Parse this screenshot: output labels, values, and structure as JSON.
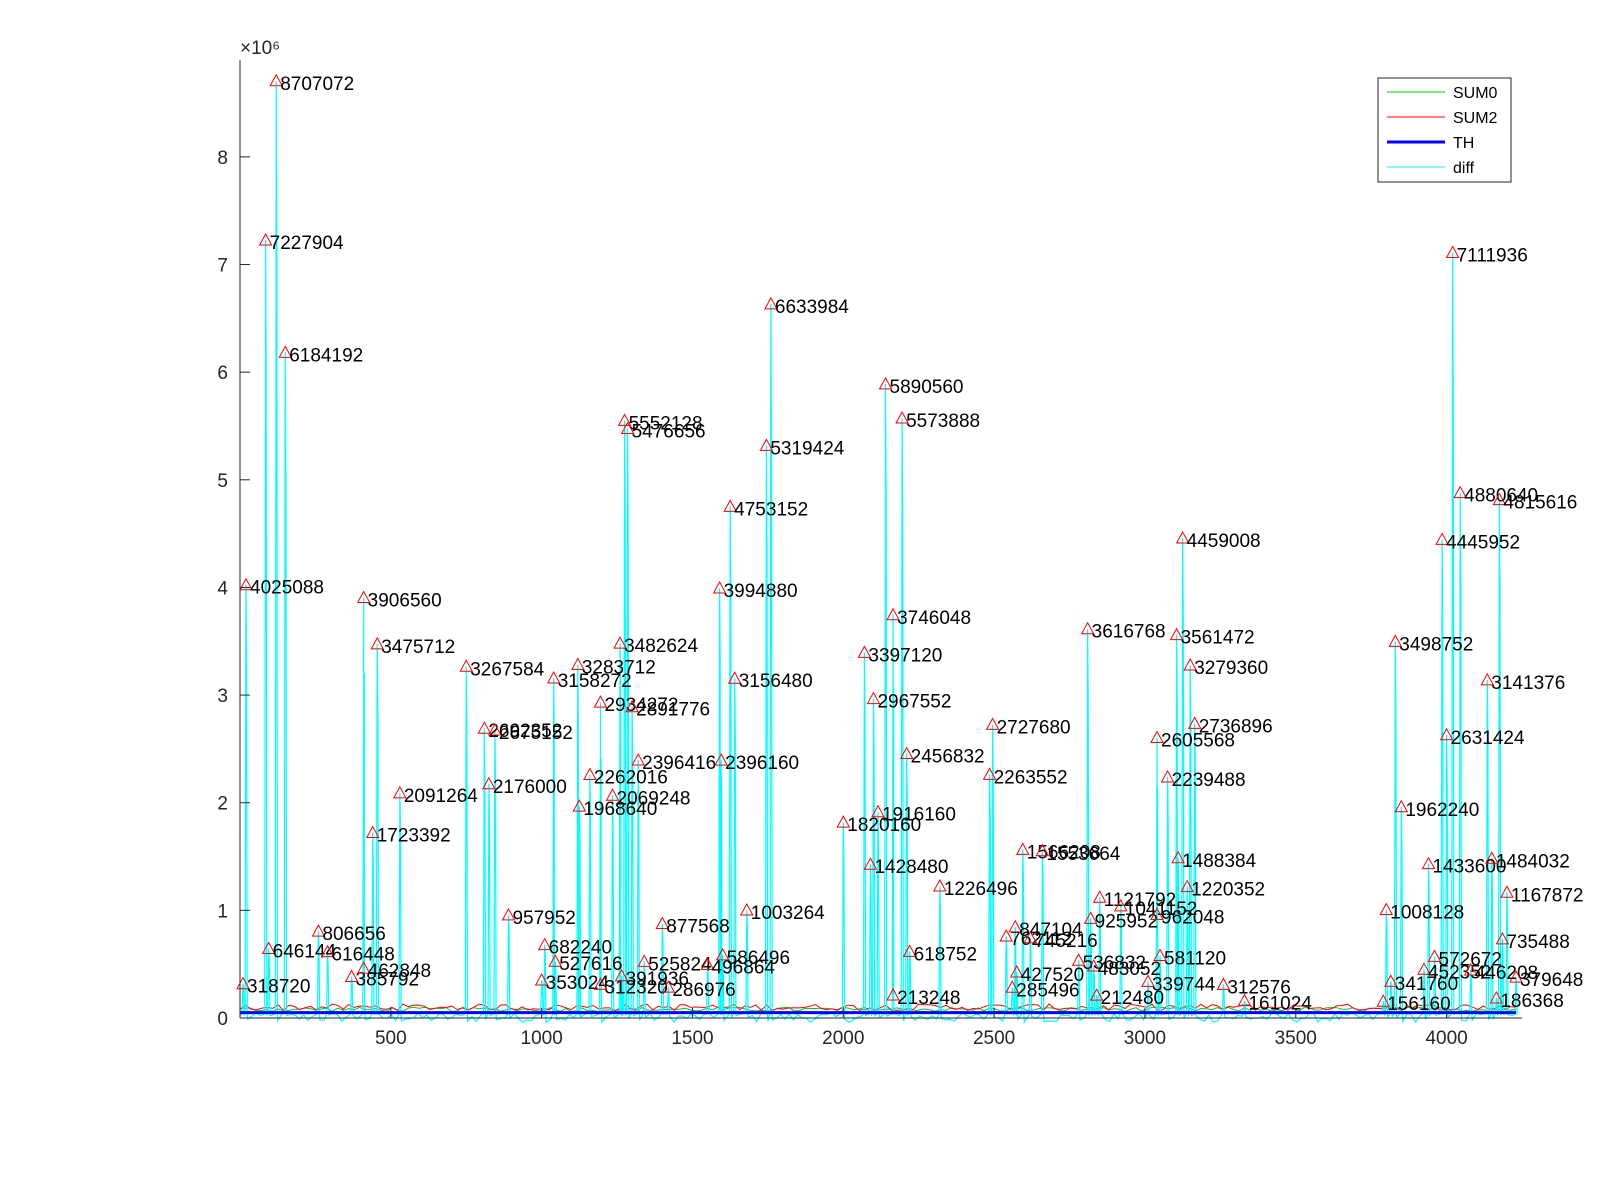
{
  "chart_data": {
    "type": "line",
    "xlim": [
      0,
      4250
    ],
    "ylim": [
      0,
      8900000
    ],
    "x_ticks": [
      500,
      1000,
      1500,
      2000,
      2500,
      3000,
      3500,
      4000
    ],
    "x_tick_labels": [
      "500",
      "1000",
      "1500",
      "2000",
      "2500",
      "3000",
      "3500",
      "4000"
    ],
    "y_ticks": [
      0,
      1,
      2,
      3,
      4,
      5,
      6,
      7,
      8
    ],
    "y_tick_labels": [
      "0",
      "1",
      "2",
      "3",
      "4",
      "5",
      "6",
      "7",
      "8"
    ],
    "y_multiplier": "×10⁶",
    "grid": false,
    "legend_position": "top-right",
    "series": [
      {
        "name": "SUM0",
        "color": "#00cc00",
        "style": "thin"
      },
      {
        "name": "SUM2",
        "color": "#ff0000",
        "style": "thin"
      },
      {
        "name": "TH",
        "color": "#0000ff",
        "style": "thick"
      },
      {
        "name": "diff",
        "color": "#00ffff",
        "style": "thin"
      }
    ],
    "th_value": 50000,
    "marker_color": "#ff0000",
    "peaks": [
      {
        "x": 20,
        "y": 4025088,
        "label": "4025088"
      },
      {
        "x": 120,
        "y": 8707072,
        "label": "8707072"
      },
      {
        "x": 85,
        "y": 7227904,
        "label": "7227904"
      },
      {
        "x": 150,
        "y": 6184192,
        "label": "6184192"
      },
      {
        "x": 10,
        "y": 318720,
        "label": "318720"
      },
      {
        "x": 95,
        "y": 646144,
        "label": "646144"
      },
      {
        "x": 260,
        "y": 806656,
        "label": "806656"
      },
      {
        "x": 290,
        "y": 616448,
        "label": "616448"
      },
      {
        "x": 410,
        "y": 3906560,
        "label": "3906560"
      },
      {
        "x": 455,
        "y": 3475712,
        "label": "3475712"
      },
      {
        "x": 440,
        "y": 1723392,
        "label": "1723392"
      },
      {
        "x": 530,
        "y": 2091264,
        "label": "2091264"
      },
      {
        "x": 410,
        "y": 462848,
        "label": "462848"
      },
      {
        "x": 370,
        "y": 385792,
        "label": "385792"
      },
      {
        "x": 750,
        "y": 3267584,
        "label": "3267584"
      },
      {
        "x": 810,
        "y": 2692352,
        "label": "2692352"
      },
      {
        "x": 845,
        "y": 2675152,
        "label": "2675152"
      },
      {
        "x": 825,
        "y": 2176000,
        "label": "2176000"
      },
      {
        "x": 890,
        "y": 957952,
        "label": "957952"
      },
      {
        "x": 1010,
        "y": 682240,
        "label": "682240"
      },
      {
        "x": 1045,
        "y": 527616,
        "label": "527616"
      },
      {
        "x": 1000,
        "y": 353024,
        "label": "353024"
      },
      {
        "x": 1040,
        "y": 3158272,
        "label": "3158272"
      },
      {
        "x": 1120,
        "y": 3283712,
        "label": "3283712"
      },
      {
        "x": 1260,
        "y": 3482624,
        "label": "3482624"
      },
      {
        "x": 1195,
        "y": 2934272,
        "label": "2934272"
      },
      {
        "x": 1300,
        "y": 2891776,
        "label": "2891776"
      },
      {
        "x": 1320,
        "y": 2396416,
        "label": "2396416"
      },
      {
        "x": 1160,
        "y": 2262016,
        "label": "2262016"
      },
      {
        "x": 1235,
        "y": 2069248,
        "label": "2069248"
      },
      {
        "x": 1125,
        "y": 1968640,
        "label": "1968640"
      },
      {
        "x": 1275,
        "y": 5552128,
        "label": "5552128"
      },
      {
        "x": 1285,
        "y": 5476656,
        "label": "5476656"
      },
      {
        "x": 1265,
        "y": 391936,
        "label": "391936"
      },
      {
        "x": 1195,
        "y": 312320,
        "label": "312320"
      },
      {
        "x": 1400,
        "y": 877568,
        "label": "877568"
      },
      {
        "x": 1340,
        "y": 525824,
        "label": "525824"
      },
      {
        "x": 1600,
        "y": 586496,
        "label": "586496"
      },
      {
        "x": 1550,
        "y": 496864,
        "label": "496864"
      },
      {
        "x": 1420,
        "y": 286976,
        "label": "286976"
      },
      {
        "x": 1590,
        "y": 3994880,
        "label": "3994880"
      },
      {
        "x": 1595,
        "y": 2396160,
        "label": "2396160"
      },
      {
        "x": 1640,
        "y": 3156480,
        "label": "3156480"
      },
      {
        "x": 1625,
        "y": 4753152,
        "label": "4753152"
      },
      {
        "x": 1745,
        "y": 5319424,
        "label": "5319424"
      },
      {
        "x": 1760,
        "y": 6633984,
        "label": "6633984"
      },
      {
        "x": 1680,
        "y": 1003264,
        "label": "1003264"
      },
      {
        "x": 2000,
        "y": 1820160,
        "label": "1820160"
      },
      {
        "x": 2070,
        "y": 3397120,
        "label": "3397120"
      },
      {
        "x": 2100,
        "y": 2967552,
        "label": "2967552"
      },
      {
        "x": 2115,
        "y": 1916160,
        "label": "1916160"
      },
      {
        "x": 2090,
        "y": 1428480,
        "label": "1428480"
      },
      {
        "x": 2140,
        "y": 5890560,
        "label": "5890560"
      },
      {
        "x": 2195,
        "y": 5573888,
        "label": "5573888"
      },
      {
        "x": 2165,
        "y": 3746048,
        "label": "3746048"
      },
      {
        "x": 2210,
        "y": 2456832,
        "label": "2456832"
      },
      {
        "x": 2220,
        "y": 618752,
        "label": "618752"
      },
      {
        "x": 2320,
        "y": 1226496,
        "label": "1226496"
      },
      {
        "x": 2165,
        "y": 213248,
        "label": "213248"
      },
      {
        "x": 2495,
        "y": 2727680,
        "label": "2727680"
      },
      {
        "x": 2485,
        "y": 2263552,
        "label": "2263552"
      },
      {
        "x": 2595,
        "y": 1566208,
        "label": "1566208"
      },
      {
        "x": 2660,
        "y": 1553664,
        "label": "1553664"
      },
      {
        "x": 2570,
        "y": 847104,
        "label": "847104"
      },
      {
        "x": 2540,
        "y": 762112,
        "label": "762112"
      },
      {
        "x": 2620,
        "y": 745216,
        "label": "745216"
      },
      {
        "x": 2575,
        "y": 427520,
        "label": "427520"
      },
      {
        "x": 2560,
        "y": 285496,
        "label": "285496"
      },
      {
        "x": 2810,
        "y": 3616768,
        "label": "3616768"
      },
      {
        "x": 2820,
        "y": 925952,
        "label": "925952"
      },
      {
        "x": 2850,
        "y": 1121792,
        "label": "1121792"
      },
      {
        "x": 2920,
        "y": 1041152,
        "label": "1041152"
      },
      {
        "x": 2780,
        "y": 536832,
        "label": "536832"
      },
      {
        "x": 2830,
        "y": 483052,
        "label": "483052"
      },
      {
        "x": 2840,
        "y": 212480,
        "label": "212480"
      },
      {
        "x": 3040,
        "y": 2605568,
        "label": "2605568"
      },
      {
        "x": 3075,
        "y": 2239488,
        "label": "2239488"
      },
      {
        "x": 3125,
        "y": 4459008,
        "label": "4459008"
      },
      {
        "x": 3105,
        "y": 3561472,
        "label": "3561472"
      },
      {
        "x": 3150,
        "y": 3279360,
        "label": "3279360"
      },
      {
        "x": 3165,
        "y": 2736896,
        "label": "2736896"
      },
      {
        "x": 3110,
        "y": 1488384,
        "label": "1488384"
      },
      {
        "x": 3140,
        "y": 1220352,
        "label": "1220352"
      },
      {
        "x": 3040,
        "y": 962048,
        "label": "962048"
      },
      {
        "x": 3050,
        "y": 581120,
        "label": "581120"
      },
      {
        "x": 3010,
        "y": 339744,
        "label": "339744"
      },
      {
        "x": 3260,
        "y": 312576,
        "label": "312576"
      },
      {
        "x": 3330,
        "y": 161024,
        "label": "161024"
      },
      {
        "x": 3800,
        "y": 1008128,
        "label": "1008128"
      },
      {
        "x": 3830,
        "y": 3498752,
        "label": "3498752"
      },
      {
        "x": 3850,
        "y": 1962240,
        "label": "1962240"
      },
      {
        "x": 3815,
        "y": 341760,
        "label": "341760"
      },
      {
        "x": 3790,
        "y": 156160,
        "label": "156160"
      },
      {
        "x": 3940,
        "y": 1433600,
        "label": "1433600"
      },
      {
        "x": 3985,
        "y": 4445952,
        "label": "4445952"
      },
      {
        "x": 4000,
        "y": 2631424,
        "label": "2631424"
      },
      {
        "x": 4020,
        "y": 7111936,
        "label": "7111936"
      },
      {
        "x": 4045,
        "y": 4880640,
        "label": "4880640"
      },
      {
        "x": 4175,
        "y": 4815616,
        "label": "4815616"
      },
      {
        "x": 4135,
        "y": 3141376,
        "label": "3141376"
      },
      {
        "x": 4150,
        "y": 1484032,
        "label": "1484032"
      },
      {
        "x": 4200,
        "y": 1167872,
        "label": "1167872"
      },
      {
        "x": 4185,
        "y": 735488,
        "label": "735488"
      },
      {
        "x": 3960,
        "y": 572672,
        "label": "572672"
      },
      {
        "x": 3925,
        "y": 452352,
        "label": "452352"
      },
      {
        "x": 4080,
        "y": 446208,
        "label": "446208"
      },
      {
        "x": 4230,
        "y": 379648,
        "label": "379648"
      },
      {
        "x": 4165,
        "y": 186368,
        "label": "186368"
      }
    ]
  },
  "legend": {
    "items": [
      "SUM0",
      "SUM2",
      "TH",
      "diff"
    ]
  }
}
